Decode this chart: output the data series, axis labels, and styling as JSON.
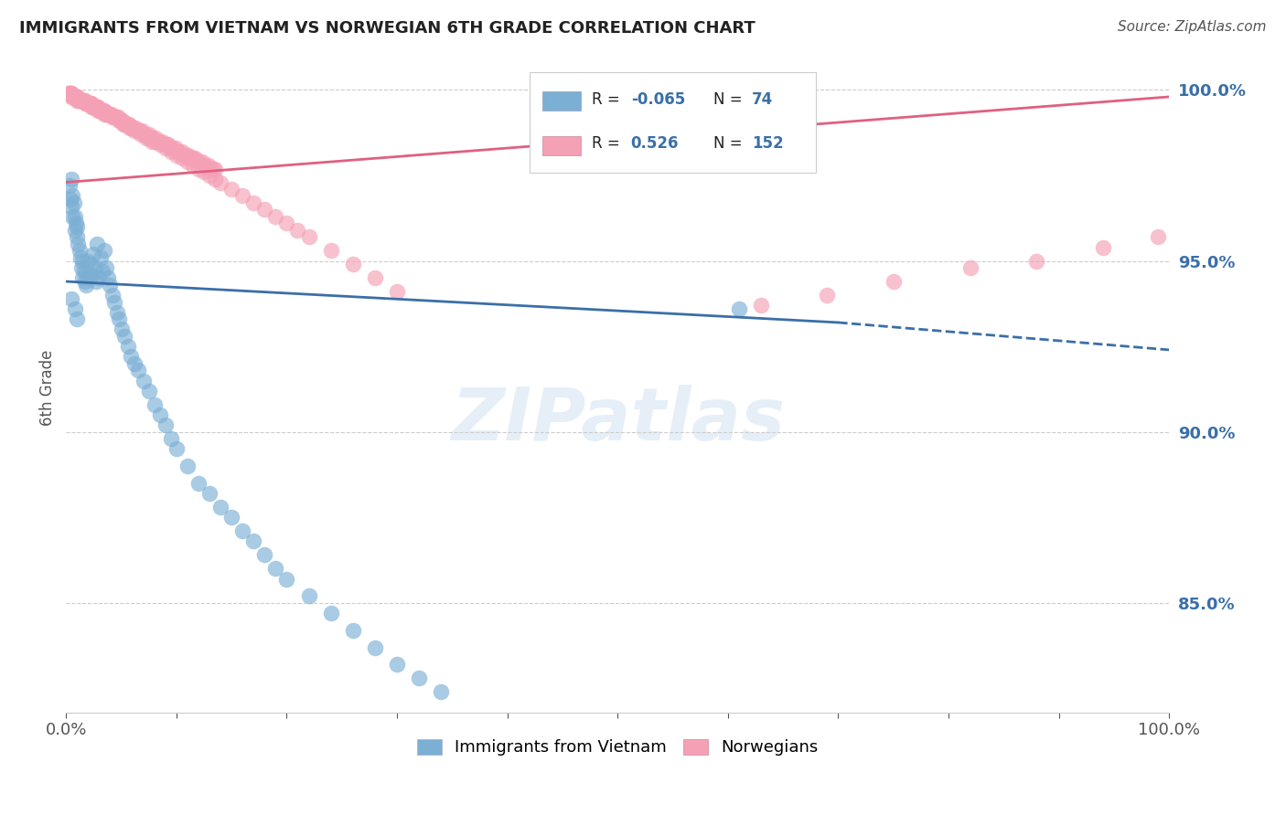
{
  "title": "IMMIGRANTS FROM VIETNAM VS NORWEGIAN 6TH GRADE CORRELATION CHART",
  "source": "Source: ZipAtlas.com",
  "ylabel": "6th Grade",
  "xlim": [
    0.0,
    1.0
  ],
  "ylim": [
    0.818,
    1.008
  ],
  "yticks": [
    0.85,
    0.9,
    0.95,
    1.0
  ],
  "ytick_labels": [
    "85.0%",
    "90.0%",
    "95.0%",
    "100.0%"
  ],
  "xticks": [
    0.0,
    0.1,
    0.2,
    0.3,
    0.4,
    0.5,
    0.6,
    0.7,
    0.8,
    0.9,
    1.0
  ],
  "xtick_labels": [
    "0.0%",
    "",
    "",
    "",
    "",
    "",
    "",
    "",
    "",
    "",
    "100.0%"
  ],
  "legend_label1": "Immigrants from Vietnam",
  "legend_label2": "Norwegians",
  "r1": "-0.065",
  "n1": "74",
  "r2": "0.526",
  "n2": "152",
  "color_blue": "#7bafd4",
  "color_pink": "#f4a0b5",
  "color_blue_dark": "#3a6fa8",
  "color_pink_dark": "#e06080",
  "watermark": "ZIPatlas",
  "blue_line_x0": 0.0,
  "blue_line_x1": 0.7,
  "blue_line_x2": 1.0,
  "blue_line_y0": 0.944,
  "blue_line_y1": 0.932,
  "blue_line_y2": 0.924,
  "pink_line_x0": 0.0,
  "pink_line_x1": 1.0,
  "pink_line_y0": 0.973,
  "pink_line_y1": 0.998,
  "blue_scatter_x": [
    0.003,
    0.004,
    0.005,
    0.005,
    0.006,
    0.006,
    0.007,
    0.008,
    0.008,
    0.009,
    0.01,
    0.01,
    0.011,
    0.012,
    0.013,
    0.014,
    0.015,
    0.015,
    0.016,
    0.017,
    0.018,
    0.019,
    0.02,
    0.021,
    0.022,
    0.023,
    0.025,
    0.026,
    0.027,
    0.028,
    0.03,
    0.031,
    0.033,
    0.035,
    0.036,
    0.038,
    0.04,
    0.042,
    0.044,
    0.046,
    0.048,
    0.05,
    0.053,
    0.056,
    0.059,
    0.062,
    0.065,
    0.07,
    0.075,
    0.08,
    0.085,
    0.09,
    0.095,
    0.1,
    0.11,
    0.12,
    0.13,
    0.14,
    0.15,
    0.16,
    0.17,
    0.18,
    0.19,
    0.2,
    0.22,
    0.24,
    0.26,
    0.28,
    0.3,
    0.32,
    0.34,
    0.61,
    0.005,
    0.008,
    0.01
  ],
  "blue_scatter_y": [
    0.972,
    0.968,
    0.974,
    0.966,
    0.969,
    0.963,
    0.967,
    0.963,
    0.959,
    0.961,
    0.957,
    0.96,
    0.955,
    0.953,
    0.951,
    0.948,
    0.95,
    0.945,
    0.947,
    0.944,
    0.943,
    0.946,
    0.95,
    0.945,
    0.949,
    0.946,
    0.952,
    0.948,
    0.944,
    0.955,
    0.945,
    0.951,
    0.947,
    0.953,
    0.948,
    0.945,
    0.943,
    0.94,
    0.938,
    0.935,
    0.933,
    0.93,
    0.928,
    0.925,
    0.922,
    0.92,
    0.918,
    0.915,
    0.912,
    0.908,
    0.905,
    0.902,
    0.898,
    0.895,
    0.89,
    0.885,
    0.882,
    0.878,
    0.875,
    0.871,
    0.868,
    0.864,
    0.86,
    0.857,
    0.852,
    0.847,
    0.842,
    0.837,
    0.832,
    0.828,
    0.824,
    0.936,
    0.939,
    0.936,
    0.933
  ],
  "pink_scatter_x": [
    0.002,
    0.003,
    0.004,
    0.005,
    0.006,
    0.007,
    0.008,
    0.009,
    0.01,
    0.011,
    0.012,
    0.013,
    0.014,
    0.015,
    0.016,
    0.017,
    0.018,
    0.019,
    0.02,
    0.021,
    0.022,
    0.023,
    0.024,
    0.025,
    0.026,
    0.027,
    0.028,
    0.029,
    0.03,
    0.031,
    0.032,
    0.033,
    0.034,
    0.035,
    0.036,
    0.037,
    0.038,
    0.039,
    0.04,
    0.042,
    0.044,
    0.046,
    0.048,
    0.05,
    0.052,
    0.054,
    0.056,
    0.058,
    0.06,
    0.062,
    0.065,
    0.068,
    0.07,
    0.073,
    0.075,
    0.078,
    0.08,
    0.085,
    0.09,
    0.095,
    0.1,
    0.105,
    0.11,
    0.115,
    0.12,
    0.125,
    0.13,
    0.135,
    0.14,
    0.15,
    0.16,
    0.17,
    0.18,
    0.19,
    0.2,
    0.21,
    0.22,
    0.24,
    0.26,
    0.28,
    0.3,
    0.003,
    0.005,
    0.007,
    0.009,
    0.011,
    0.013,
    0.015,
    0.017,
    0.019,
    0.021,
    0.023,
    0.025,
    0.027,
    0.029,
    0.031,
    0.033,
    0.035,
    0.037,
    0.039,
    0.041,
    0.043,
    0.045,
    0.047,
    0.049,
    0.051,
    0.053,
    0.055,
    0.057,
    0.059,
    0.061,
    0.063,
    0.065,
    0.067,
    0.069,
    0.071,
    0.073,
    0.075,
    0.077,
    0.079,
    0.081,
    0.083,
    0.085,
    0.087,
    0.089,
    0.091,
    0.093,
    0.095,
    0.097,
    0.099,
    0.101,
    0.103,
    0.105,
    0.107,
    0.109,
    0.111,
    0.113,
    0.115,
    0.117,
    0.119,
    0.121,
    0.123,
    0.125,
    0.127,
    0.129,
    0.131,
    0.133,
    0.135,
    0.63,
    0.69,
    0.75,
    0.82,
    0.88,
    0.94,
    0.99,
    0.005,
    0.01,
    0.015
  ],
  "pink_scatter_y": [
    0.999,
    0.999,
    0.999,
    0.998,
    0.998,
    0.998,
    0.998,
    0.998,
    0.997,
    0.997,
    0.997,
    0.997,
    0.997,
    0.997,
    0.997,
    0.996,
    0.996,
    0.996,
    0.996,
    0.996,
    0.996,
    0.995,
    0.995,
    0.995,
    0.995,
    0.995,
    0.995,
    0.994,
    0.994,
    0.994,
    0.994,
    0.994,
    0.994,
    0.993,
    0.993,
    0.993,
    0.993,
    0.993,
    0.993,
    0.992,
    0.992,
    0.992,
    0.991,
    0.991,
    0.99,
    0.99,
    0.99,
    0.989,
    0.989,
    0.988,
    0.988,
    0.987,
    0.987,
    0.986,
    0.986,
    0.985,
    0.985,
    0.984,
    0.983,
    0.982,
    0.981,
    0.98,
    0.979,
    0.978,
    0.977,
    0.976,
    0.975,
    0.974,
    0.973,
    0.971,
    0.969,
    0.967,
    0.965,
    0.963,
    0.961,
    0.959,
    0.957,
    0.953,
    0.949,
    0.945,
    0.941,
    0.999,
    0.999,
    0.998,
    0.998,
    0.998,
    0.997,
    0.997,
    0.997,
    0.996,
    0.996,
    0.996,
    0.995,
    0.995,
    0.995,
    0.994,
    0.994,
    0.994,
    0.993,
    0.993,
    0.993,
    0.992,
    0.992,
    0.992,
    0.991,
    0.991,
    0.99,
    0.99,
    0.99,
    0.989,
    0.989,
    0.989,
    0.988,
    0.988,
    0.988,
    0.987,
    0.987,
    0.987,
    0.986,
    0.986,
    0.986,
    0.985,
    0.985,
    0.985,
    0.984,
    0.984,
    0.984,
    0.983,
    0.983,
    0.983,
    0.982,
    0.982,
    0.982,
    0.981,
    0.981,
    0.981,
    0.98,
    0.98,
    0.98,
    0.979,
    0.979,
    0.979,
    0.978,
    0.978,
    0.978,
    0.977,
    0.977,
    0.977,
    0.937,
    0.94,
    0.944,
    0.948,
    0.95,
    0.954,
    0.957,
    0.999,
    0.998,
    0.997
  ]
}
